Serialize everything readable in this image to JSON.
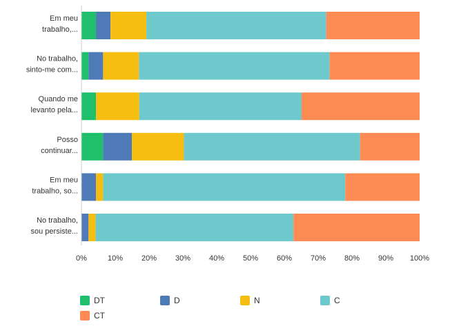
{
  "chart_data": {
    "type": "bar",
    "orientation": "horizontal",
    "stacked": true,
    "categories": [
      [
        "Em meu",
        "trabalho,..."
      ],
      [
        "No trabalho,",
        "sinto-me com..."
      ],
      [
        "Quando me",
        "levanto pela..."
      ],
      [
        "Posso",
        "continuar..."
      ],
      [
        "Em meu",
        "trabalho, so..."
      ],
      [
        "No trabalho,",
        "sou persiste..."
      ]
    ],
    "series": [
      {
        "name": "DT",
        "color": "#1fbf6b",
        "values": [
          4.3,
          2.1,
          4.3,
          6.4,
          0.0,
          0.0
        ]
      },
      {
        "name": "D",
        "color": "#4e7ab7",
        "values": [
          4.3,
          4.3,
          0.0,
          8.5,
          4.3,
          2.1
        ]
      },
      {
        "name": "N",
        "color": "#f7be12",
        "values": [
          10.6,
          10.6,
          12.8,
          15.4,
          2.1,
          2.1
        ]
      },
      {
        "name": "C",
        "color": "#6dc9cc",
        "values": [
          53.2,
          56.4,
          48.0,
          52.1,
          71.6,
          58.5
        ]
      },
      {
        "name": "CT",
        "color": "#ff8b54",
        "values": [
          27.6,
          26.6,
          34.9,
          17.6,
          22.0,
          37.3
        ]
      }
    ],
    "xlim": [
      0,
      100
    ],
    "xticks": [
      "0%",
      "10%",
      "20%",
      "30%",
      "40%",
      "50%",
      "60%",
      "70%",
      "80%",
      "90%",
      "100%"
    ],
    "legend_position": "bottom",
    "grid": false
  }
}
